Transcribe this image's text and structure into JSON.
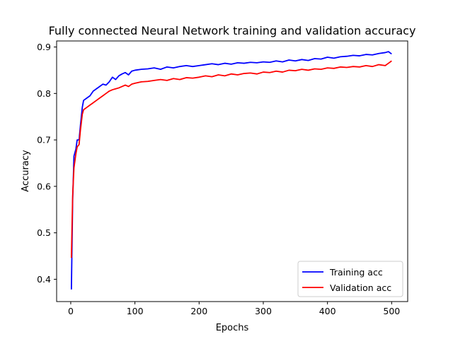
{
  "chart_data": {
    "type": "line",
    "title": "Fully connected Neural Network training and validation accuracy",
    "xlabel": "Epochs",
    "ylabel": "Accuracy",
    "xlim": [
      -22,
      525
    ],
    "ylim": [
      0.352,
      0.913
    ],
    "xticks": [
      0,
      100,
      200,
      300,
      400,
      500
    ],
    "yticks": [
      0.4,
      0.5,
      0.6,
      0.7,
      0.8,
      0.9
    ],
    "ytick_labels": [
      "0.4",
      "0.5",
      "0.6",
      "0.7",
      "0.8",
      "0.9"
    ],
    "grid": false,
    "legend_position": "lower-right",
    "series": [
      {
        "name": "Training acc",
        "color": "#0000ff",
        "x": [
          1,
          3,
          5,
          8,
          10,
          13,
          15,
          18,
          20,
          25,
          30,
          35,
          40,
          45,
          50,
          55,
          60,
          65,
          70,
          75,
          80,
          85,
          90,
          95,
          100,
          110,
          120,
          130,
          140,
          150,
          160,
          170,
          180,
          190,
          200,
          210,
          220,
          230,
          240,
          250,
          260,
          270,
          280,
          290,
          300,
          310,
          320,
          330,
          340,
          350,
          360,
          370,
          380,
          390,
          400,
          410,
          420,
          430,
          440,
          450,
          460,
          470,
          480,
          490,
          495,
          500
        ],
        "y": [
          0.378,
          0.57,
          0.665,
          0.68,
          0.7,
          0.7,
          0.73,
          0.77,
          0.785,
          0.79,
          0.795,
          0.805,
          0.81,
          0.815,
          0.82,
          0.818,
          0.825,
          0.835,
          0.83,
          0.838,
          0.842,
          0.845,
          0.84,
          0.848,
          0.85,
          0.852,
          0.853,
          0.855,
          0.852,
          0.857,
          0.855,
          0.858,
          0.86,
          0.858,
          0.86,
          0.862,
          0.864,
          0.862,
          0.865,
          0.863,
          0.866,
          0.865,
          0.867,
          0.866,
          0.868,
          0.867,
          0.87,
          0.868,
          0.872,
          0.87,
          0.873,
          0.871,
          0.875,
          0.874,
          0.878,
          0.876,
          0.879,
          0.88,
          0.882,
          0.881,
          0.884,
          0.883,
          0.886,
          0.888,
          0.89,
          0.885
        ]
      },
      {
        "name": "Validation acc",
        "color": "#ff0000",
        "x": [
          1,
          3,
          5,
          8,
          10,
          13,
          15,
          18,
          20,
          25,
          30,
          35,
          40,
          45,
          50,
          55,
          60,
          65,
          70,
          75,
          80,
          85,
          90,
          95,
          100,
          110,
          120,
          130,
          140,
          150,
          160,
          170,
          180,
          190,
          200,
          210,
          220,
          230,
          240,
          250,
          260,
          270,
          280,
          290,
          300,
          310,
          320,
          330,
          340,
          350,
          360,
          370,
          380,
          390,
          400,
          410,
          420,
          430,
          440,
          450,
          460,
          470,
          480,
          490,
          495,
          500
        ],
        "y": [
          0.446,
          0.58,
          0.64,
          0.67,
          0.685,
          0.69,
          0.72,
          0.755,
          0.765,
          0.77,
          0.775,
          0.78,
          0.785,
          0.79,
          0.795,
          0.8,
          0.805,
          0.808,
          0.81,
          0.812,
          0.815,
          0.818,
          0.815,
          0.82,
          0.822,
          0.825,
          0.826,
          0.828,
          0.83,
          0.828,
          0.832,
          0.83,
          0.834,
          0.833,
          0.835,
          0.838,
          0.836,
          0.84,
          0.838,
          0.842,
          0.84,
          0.843,
          0.844,
          0.842,
          0.846,
          0.845,
          0.848,
          0.846,
          0.85,
          0.849,
          0.852,
          0.85,
          0.853,
          0.852,
          0.855,
          0.854,
          0.857,
          0.856,
          0.858,
          0.857,
          0.86,
          0.858,
          0.862,
          0.86,
          0.865,
          0.87
        ]
      }
    ]
  }
}
